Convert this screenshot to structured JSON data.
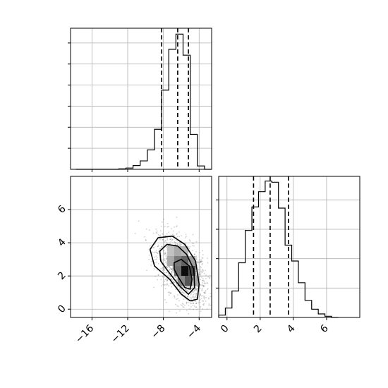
{
  "chart_data": [
    {
      "type": "histogram",
      "panel": "marginal-x",
      "bins": [
        -17.8,
        -17.0,
        -16.2,
        -15.4,
        -14.6,
        -13.8,
        -13.0,
        -12.2,
        -11.4,
        -10.6,
        -9.8,
        -9.0,
        -8.2,
        -7.4,
        -6.6,
        -5.8,
        -5.0,
        -4.2,
        -3.4,
        -2.6
      ],
      "counts": [
        0,
        0,
        0,
        0,
        0,
        0,
        1,
        3,
        9,
        20,
        46,
        95,
        188,
        285,
        321,
        271,
        83,
        8,
        0
      ],
      "quantile_lines": [
        -8.2,
        -6.4,
        -5.2
      ],
      "xlim": [
        -18.4,
        -2.6
      ],
      "ylim": [
        0,
        335
      ],
      "grid": true
    },
    {
      "type": "histogram",
      "panel": "marginal-y",
      "bins": [
        -0.5,
        -0.1,
        0.3,
        0.7,
        1.1,
        1.5,
        1.9,
        2.3,
        2.7,
        3.1,
        3.5,
        3.9,
        4.3,
        4.7,
        5.1,
        5.5,
        5.9,
        6.3,
        6.7
      ],
      "counts": [
        4,
        16,
        45,
        93,
        148,
        188,
        214,
        232,
        230,
        186,
        123,
        96,
        59,
        29,
        14,
        6,
        2,
        0
      ],
      "quantile_lines": [
        1.6,
        2.6,
        3.7
      ],
      "xlim": [
        -0.5,
        8.0
      ],
      "ylim": [
        0,
        240
      ],
      "xticks": [
        "0",
        "2",
        "4",
        "6"
      ],
      "grid": true
    },
    {
      "type": "heatmap",
      "panel": "joint",
      "description_type": "2d-density-scatter-with-contours",
      "xlim": [
        -18.4,
        -2.6
      ],
      "ylim": [
        -0.5,
        8.0
      ],
      "xticks": [
        "−16",
        "−12",
        "−8",
        "−4"
      ],
      "yticks": [
        "0",
        "2",
        "4",
        "6"
      ],
      "density_center": [
        -5.9,
        2.1
      ],
      "contour_levels": 3,
      "grid": true
    }
  ]
}
